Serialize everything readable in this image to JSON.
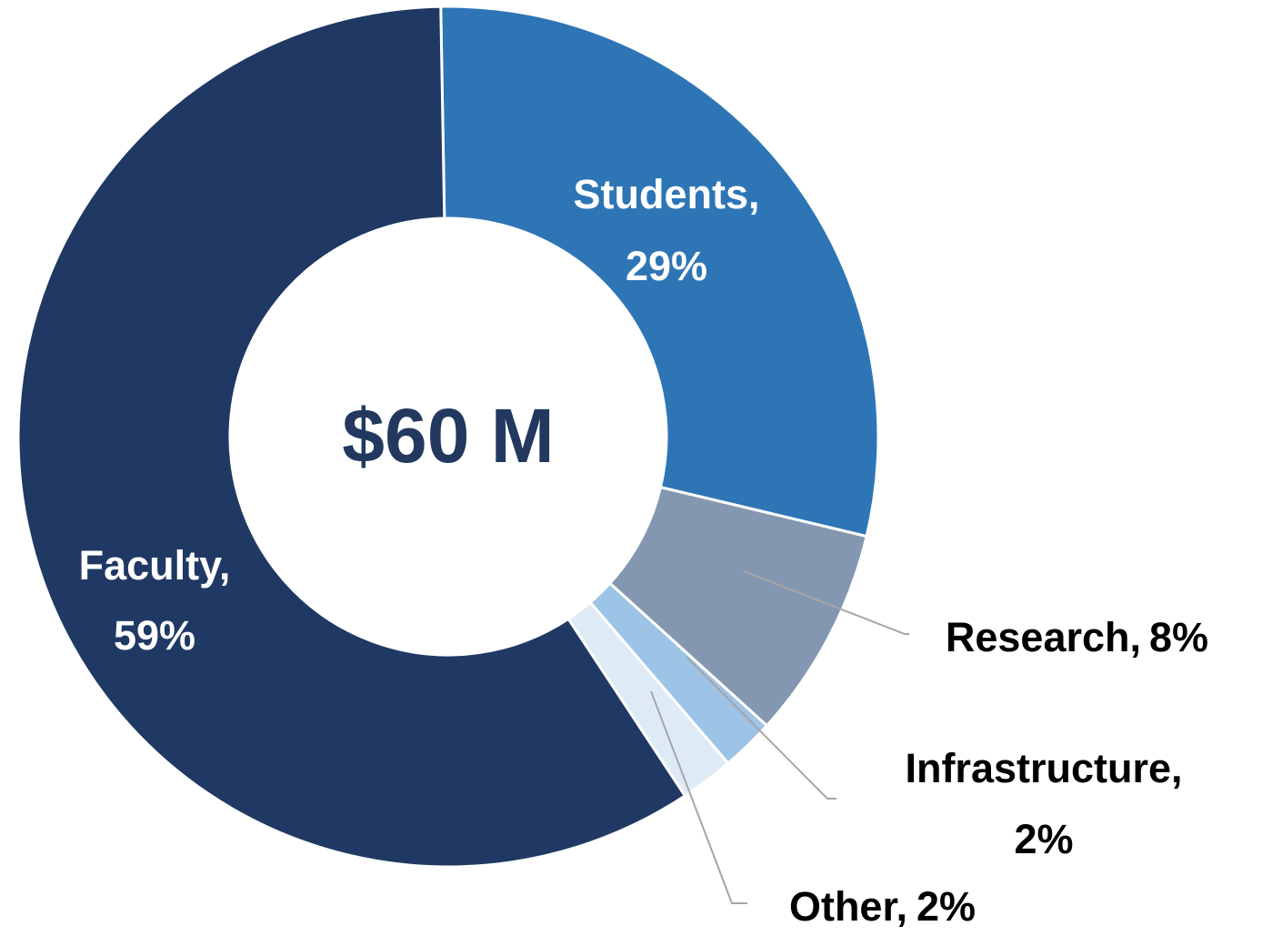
{
  "chart_data": {
    "type": "donut",
    "center_label": "$60 M",
    "categories": [
      "Students,",
      "Research,",
      "Infrastructure,",
      "Other,",
      "Faculty,"
    ],
    "values": [
      29,
      8,
      2,
      2,
      59
    ],
    "value_labels": [
      "29%",
      "8%",
      "2%",
      "2%",
      "59%"
    ],
    "colors": [
      "#2e75b6",
      "#8497b0",
      "#9dc3e6",
      "#deebf7",
      "#203864"
    ]
  }
}
